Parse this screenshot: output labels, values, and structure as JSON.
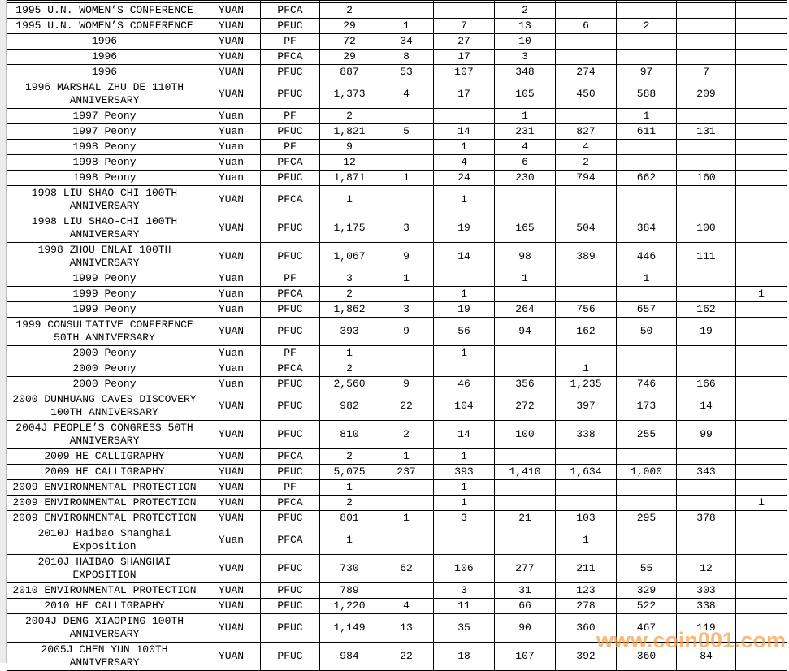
{
  "table": {
    "rows": [
      {
        "description": "1995 U.N. WOMEN’S CONFERENCE",
        "denomination": "YUAN",
        "grade_type": "PFCA",
        "cells": [
          "2",
          "",
          "",
          "2",
          "",
          "",
          "",
          ""
        ]
      },
      {
        "description": "1995 U.N. WOMEN’S CONFERENCE",
        "denomination": "YUAN",
        "grade_type": "PFUC",
        "cells": [
          "29",
          "1",
          "7",
          "13",
          "6",
          "2",
          "",
          ""
        ]
      },
      {
        "description": "1996",
        "denomination": "YUAN",
        "grade_type": "PF",
        "cells": [
          "72",
          "34",
          "27",
          "10",
          "",
          "",
          "",
          ""
        ]
      },
      {
        "description": "1996",
        "denomination": "YUAN",
        "grade_type": "PFCA",
        "cells": [
          "29",
          "8",
          "17",
          "3",
          "",
          "",
          "",
          ""
        ]
      },
      {
        "description": "1996",
        "denomination": "YUAN",
        "grade_type": "PFUC",
        "cells": [
          "887",
          "53",
          "107",
          "348",
          "274",
          "97",
          "7",
          ""
        ]
      },
      {
        "description": "1996 MARSHAL ZHU DE 110TH ANNIVERSARY",
        "denomination": "YUAN",
        "grade_type": "PFUC",
        "cells": [
          "1,373",
          "4",
          "17",
          "105",
          "450",
          "588",
          "209",
          ""
        ]
      },
      {
        "description": "1997 Peony",
        "denomination": "Yuan",
        "grade_type": "PF",
        "cells": [
          "2",
          "",
          "",
          "1",
          "",
          "1",
          "",
          ""
        ]
      },
      {
        "description": "1997 Peony",
        "denomination": "Yuan",
        "grade_type": "PFUC",
        "cells": [
          "1,821",
          "5",
          "14",
          "231",
          "827",
          "611",
          "131",
          ""
        ]
      },
      {
        "description": "1998 Peony",
        "denomination": "Yuan",
        "grade_type": "PF",
        "cells": [
          "9",
          "",
          "1",
          "4",
          "4",
          "",
          "",
          ""
        ]
      },
      {
        "description": "1998 Peony",
        "denomination": "Yuan",
        "grade_type": "PFCA",
        "cells": [
          "12",
          "",
          "4",
          "6",
          "2",
          "",
          "",
          ""
        ]
      },
      {
        "description": "1998 Peony",
        "denomination": "Yuan",
        "grade_type": "PFUC",
        "cells": [
          "1,871",
          "1",
          "24",
          "230",
          "794",
          "662",
          "160",
          ""
        ]
      },
      {
        "description": "1998 LIU SHAO-CHI 100TH ANNIVERSARY",
        "denomination": "YUAN",
        "grade_type": "PFCA",
        "cells": [
          "1",
          "",
          "1",
          "",
          "",
          "",
          "",
          ""
        ]
      },
      {
        "description": "1998 LIU SHAO-CHI 100TH ANNIVERSARY",
        "denomination": "YUAN",
        "grade_type": "PFUC",
        "cells": [
          "1,175",
          "3",
          "19",
          "165",
          "504",
          "384",
          "100",
          ""
        ]
      },
      {
        "description": "1998 ZHOU ENLAI 100TH ANNIVERSARY",
        "denomination": "YUAN",
        "grade_type": "PFUC",
        "cells": [
          "1,067",
          "9",
          "14",
          "98",
          "389",
          "446",
          "111",
          ""
        ]
      },
      {
        "description": "1999 Peony",
        "denomination": "Yuan",
        "grade_type": "PF",
        "cells": [
          "3",
          "1",
          "",
          "1",
          "",
          "1",
          "",
          ""
        ]
      },
      {
        "description": "1999 Peony",
        "denomination": "Yuan",
        "grade_type": "PFCA",
        "cells": [
          "2",
          "",
          "1",
          "",
          "",
          "",
          "",
          "1"
        ]
      },
      {
        "description": "1999 Peony",
        "denomination": "Yuan",
        "grade_type": "PFUC",
        "cells": [
          "1,862",
          "3",
          "19",
          "264",
          "756",
          "657",
          "162",
          ""
        ]
      },
      {
        "description": "1999 CONSULTATIVE CONFERENCE 50TH ANNIVERSARY",
        "denomination": "YUAN",
        "grade_type": "PFUC",
        "cells": [
          "393",
          "9",
          "56",
          "94",
          "162",
          "50",
          "19",
          ""
        ]
      },
      {
        "description": "2000 Peony",
        "denomination": "Yuan",
        "grade_type": "PF",
        "cells": [
          "1",
          "",
          "1",
          "",
          "",
          "",
          "",
          ""
        ]
      },
      {
        "description": "2000 Peony",
        "denomination": "Yuan",
        "grade_type": "PFCA",
        "cells": [
          "2",
          "",
          "",
          "",
          "1",
          "",
          "",
          ""
        ]
      },
      {
        "description": "2000 Peony",
        "denomination": "Yuan",
        "grade_type": "PFUC",
        "cells": [
          "2,560",
          "9",
          "46",
          "356",
          "1,235",
          "746",
          "166",
          ""
        ]
      },
      {
        "description": "2000 DUNHUANG CAVES DISCOVERY 100TH ANNIVERSARY",
        "denomination": "YUAN",
        "grade_type": "PFUC",
        "cells": [
          "982",
          "22",
          "104",
          "272",
          "397",
          "173",
          "14",
          ""
        ]
      },
      {
        "description": "2004J PEOPLE’S CONGRESS 50TH ANNIVERSARY",
        "denomination": "YUAN",
        "grade_type": "PFUC",
        "cells": [
          "810",
          "2",
          "14",
          "100",
          "338",
          "255",
          "99",
          ""
        ]
      },
      {
        "description": "2009 HE CALLIGRAPHY",
        "denomination": "YUAN",
        "grade_type": "PFCA",
        "cells": [
          "2",
          "1",
          "1",
          "",
          "",
          "",
          "",
          ""
        ]
      },
      {
        "description": "2009 HE CALLIGRAPHY",
        "denomination": "YUAN",
        "grade_type": "PFUC",
        "cells": [
          "5,075",
          "237",
          "393",
          "1,410",
          "1,634",
          "1,000",
          "343",
          ""
        ]
      },
      {
        "description": "2009 ENVIRONMENTAL PROTECTION",
        "denomination": "YUAN",
        "grade_type": "PF",
        "cells": [
          "1",
          "",
          "1",
          "",
          "",
          "",
          "",
          ""
        ]
      },
      {
        "description": "2009 ENVIRONMENTAL PROTECTION",
        "denomination": "YUAN",
        "grade_type": "PFCA",
        "cells": [
          "2",
          "",
          "1",
          "",
          "",
          "",
          "",
          "1"
        ]
      },
      {
        "description": "2009 ENVIRONMENTAL PROTECTION",
        "denomination": "YUAN",
        "grade_type": "PFUC",
        "cells": [
          "801",
          "1",
          "3",
          "21",
          "103",
          "295",
          "378",
          ""
        ]
      },
      {
        "description": "2010J Haibao Shanghai Exposition",
        "denomination": "Yuan",
        "grade_type": "PFCA",
        "cells": [
          "1",
          "",
          "",
          "",
          "1",
          "",
          "",
          ""
        ]
      },
      {
        "description": "2010J HAIBAO SHANGHAI EXPOSITION",
        "denomination": "YUAN",
        "grade_type": "PFUC",
        "cells": [
          "730",
          "62",
          "106",
          "277",
          "211",
          "55",
          "12",
          ""
        ]
      },
      {
        "description": "2010 ENVIRONMENTAL PROTECTION",
        "denomination": "YUAN",
        "grade_type": "PFUC",
        "cells": [
          "789",
          "",
          "3",
          "31",
          "123",
          "329",
          "303",
          ""
        ]
      },
      {
        "description": "2010 HE CALLIGRAPHY",
        "denomination": "YUAN",
        "grade_type": "PFUC",
        "cells": [
          "1,220",
          "4",
          "11",
          "66",
          "278",
          "522",
          "338",
          ""
        ]
      },
      {
        "description": "2004J DENG XIAOPING 100TH ANNIVERSARY",
        "denomination": "YUAN",
        "grade_type": "PFUC",
        "cells": [
          "1,149",
          "13",
          "35",
          "90",
          "360",
          "467",
          "119",
          ""
        ]
      },
      {
        "description": "2005J CHEN YUN 100TH ANNIVERSARY",
        "denomination": "YUAN",
        "grade_type": "PFUC",
        "cells": [
          "984",
          "22",
          "18",
          "107",
          "392",
          "360",
          "84",
          ""
        ]
      }
    ]
  },
  "watermark": {
    "text": "www.coin001.com",
    "color": "#f59e4a"
  }
}
